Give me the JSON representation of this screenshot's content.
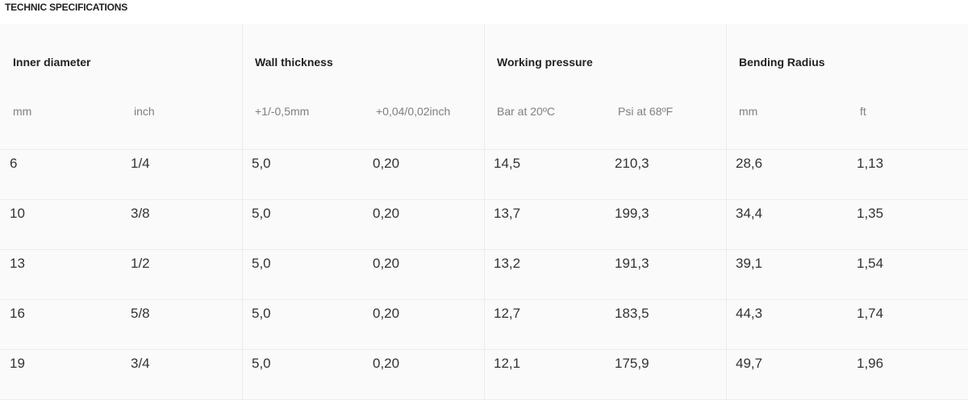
{
  "title": "TECHNIC SPECIFICATIONS",
  "groups": [
    {
      "label": "Inner diameter",
      "sub": [
        "mm",
        "inch"
      ]
    },
    {
      "label": "Wall thickness",
      "sub": [
        "+1/-0,5mm",
        "+0,04/0,02inch"
      ]
    },
    {
      "label": "Working pressure",
      "sub": [
        "Bar at 20ºC",
        "Psi at 68ºF"
      ]
    },
    {
      "label": "Bending Radius",
      "sub": [
        "mm",
        "ft"
      ]
    }
  ],
  "rows": [
    [
      "6",
      "1/4",
      "5,0",
      "0,20",
      "14,5",
      "210,3",
      "28,6",
      "1,13"
    ],
    [
      "10",
      "3/8",
      "5,0",
      "0,20",
      "13,7",
      "199,3",
      "34,4",
      "1,35"
    ],
    [
      "13",
      "1/2",
      "5,0",
      "0,20",
      "13,2",
      "191,3",
      "39,1",
      "1,54"
    ],
    [
      "16",
      "5/8",
      "5,0",
      "0,20",
      "12,7",
      "183,5",
      "44,3",
      "1,74"
    ],
    [
      "19",
      "3/4",
      "5,0",
      "0,20",
      "12,1",
      "175,9",
      "49,7",
      "1,96"
    ]
  ]
}
